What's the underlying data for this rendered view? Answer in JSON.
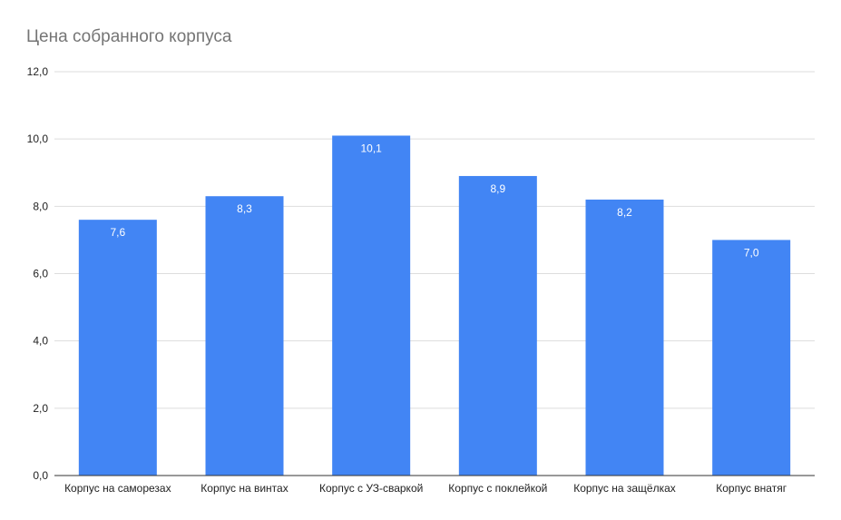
{
  "chart_data": {
    "type": "bar",
    "title": "Цена собранного корпуса",
    "xlabel": "",
    "ylabel": "",
    "categories": [
      "Корпус на саморезах",
      "Корпус на винтах",
      "Корпус с УЗ-сваркой",
      "Корпус с поклейкой",
      "Корпус на защёлках",
      "Корпус внатяг"
    ],
    "values": [
      7.6,
      8.3,
      10.1,
      8.9,
      8.2,
      7.0
    ],
    "value_labels": [
      "7,6",
      "8,3",
      "10,1",
      "8,9",
      "8,2",
      "7,0"
    ],
    "ylim": [
      0,
      12
    ],
    "yticks": [
      0,
      2,
      4,
      6,
      8,
      10,
      12
    ],
    "ytick_labels": [
      "0,0",
      "2,0",
      "4,0",
      "6,0",
      "8,0",
      "10,0",
      "12,0"
    ],
    "grid": true,
    "legend": "none",
    "colors": {
      "bar": "#4285f4",
      "title": "#757575",
      "grid": "#dddddd",
      "axis": "#333333",
      "tick_text": "#222222",
      "value_text": "#ffffff"
    }
  }
}
